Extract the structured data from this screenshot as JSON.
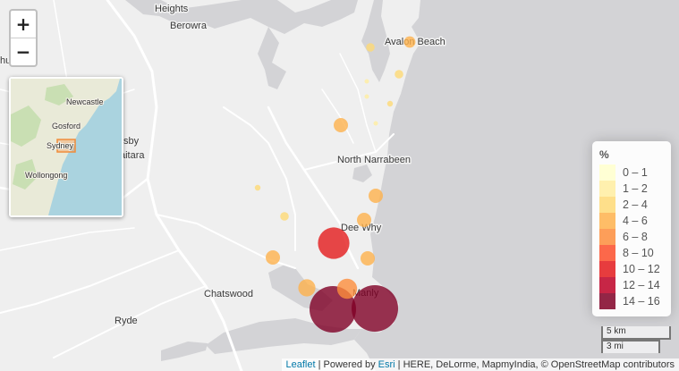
{
  "map": {
    "labels": [
      {
        "id": "heights",
        "text": "Heights"
      },
      {
        "id": "berowra",
        "text": "Berowra"
      },
      {
        "id": "avalon-beach",
        "text": "Avalon Beach"
      },
      {
        "id": "north-narrabeen",
        "text": "North Narrabeen"
      },
      {
        "id": "dee-why",
        "text": "Dee Why"
      },
      {
        "id": "manly",
        "text": "Manly"
      },
      {
        "id": "chatswood",
        "text": "Chatswood"
      },
      {
        "id": "ryde",
        "text": "Ryde"
      },
      {
        "id": "hornsby-partial",
        "text": "sby"
      },
      {
        "id": "wahroonga-partial",
        "text": "aitara"
      },
      {
        "id": "hu-partial",
        "text": "hu"
      }
    ],
    "markers": [
      {
        "value": 15,
        "color": "#800026"
      },
      {
        "value": 15,
        "color": "#800026"
      },
      {
        "value": 11,
        "color": "#e31a1c"
      },
      {
        "value": 7,
        "color": "#fd8d3c"
      },
      {
        "value": 6,
        "color": "#feb24c"
      },
      {
        "value": 5,
        "color": "#feb24c"
      },
      {
        "value": 5,
        "color": "#feb24c"
      },
      {
        "value": 5,
        "color": "#feb24c"
      },
      {
        "value": 5,
        "color": "#feb24c"
      },
      {
        "value": 5,
        "color": "#feb24c"
      },
      {
        "value": 4,
        "color": "#feb24c"
      },
      {
        "value": 3,
        "color": "#fed976"
      },
      {
        "value": 3,
        "color": "#fed976"
      },
      {
        "value": 3,
        "color": "#fed976"
      },
      {
        "value": 2,
        "color": "#fed976"
      },
      {
        "value": 2,
        "color": "#fed976"
      },
      {
        "value": 1,
        "color": "#ffeda0"
      },
      {
        "value": 1,
        "color": "#ffeda0"
      },
      {
        "value": 1,
        "color": "#ffeda0"
      }
    ]
  },
  "zoom": {
    "in_label": "+",
    "out_label": "−"
  },
  "minimap": {
    "labels": [
      {
        "id": "newcastle",
        "text": "Newcastle"
      },
      {
        "id": "gosford",
        "text": "Gosford"
      },
      {
        "id": "sydney",
        "text": "Sydney"
      },
      {
        "id": "wollongong",
        "text": "Wollongong"
      }
    ]
  },
  "legend": {
    "title": "%",
    "items": [
      {
        "label": "0 – 1",
        "color": "#ffffcc"
      },
      {
        "label": "1 – 2",
        "color": "#ffeda0"
      },
      {
        "label": "2 – 4",
        "color": "#fed976"
      },
      {
        "label": "4 – 6",
        "color": "#feb24c"
      },
      {
        "label": "6 – 8",
        "color": "#fd8d3c"
      },
      {
        "label": "8 – 10",
        "color": "#fc4e2a"
      },
      {
        "label": "10 – 12",
        "color": "#e31a1c"
      },
      {
        "label": "12 – 14",
        "color": "#bd0026"
      },
      {
        "label": "14 – 16",
        "color": "#800026"
      }
    ]
  },
  "scale": {
    "metric": "5 km",
    "imperial": "3 mi"
  },
  "attribution": {
    "leaflet": "Leaflet",
    "powered_by": " | Powered by ",
    "esri": "Esri",
    "rest": " | HERE, DeLorme, MapmyIndia, © OpenStreetMap contributors"
  }
}
